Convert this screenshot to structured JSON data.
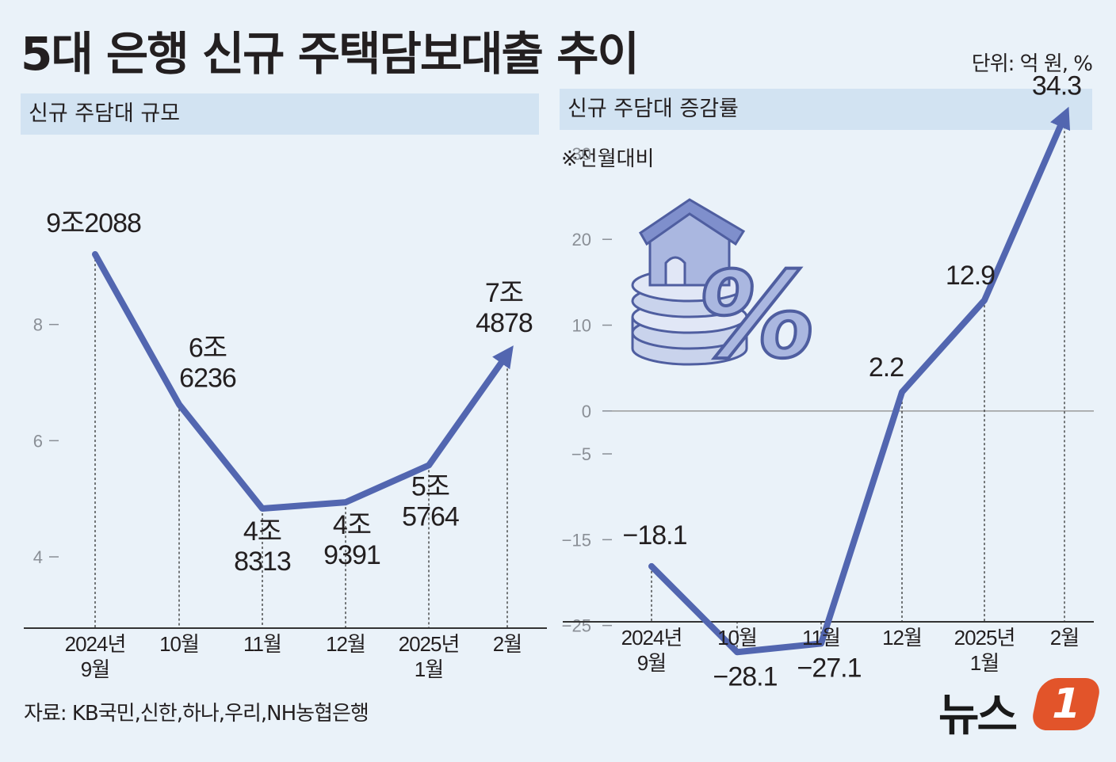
{
  "header": {
    "title": "5대 은행 신규 주택담보대출 추이",
    "unit": "단위: 억 원, %"
  },
  "footer": {
    "source": "자료: KB국민,신한,하나,우리,NH농협은행",
    "logo_text": "뉴스",
    "logo_badge": "1"
  },
  "colors": {
    "line": "#5266b0",
    "panel_header": "#d2e3f2",
    "background": "#eaf2f9",
    "logo": "#e2542a"
  },
  "icons": [
    "house-on-coins-percent-icon"
  ],
  "chart_data": [
    {
      "type": "line",
      "title": "신규 주담대 규모",
      "categories": [
        "2024년 9월",
        "10월",
        "11월",
        "12월",
        "2025년 1월",
        "2월"
      ],
      "category_lines": [
        [
          "2024년",
          "9월"
        ],
        [
          "10월"
        ],
        [
          "11월"
        ],
        [
          "12월"
        ],
        [
          "2025년",
          "1월"
        ],
        [
          "2월"
        ]
      ],
      "values": [
        92088,
        66236,
        48313,
        49391,
        55764,
        74878
      ],
      "value_labels": [
        [
          "9조2088"
        ],
        [
          "6조",
          "6236"
        ],
        [
          "4조",
          "8313"
        ],
        [
          "4조",
          "9391"
        ],
        [
          "5조",
          "5764"
        ],
        [
          "7조",
          "4878"
        ]
      ],
      "yticks": [
        {
          "value": 40000,
          "label": "4"
        },
        {
          "value": 60000,
          "label": "6"
        },
        {
          "value": 80000,
          "label": "8"
        }
      ],
      "ylim": [
        22000,
        100000
      ],
      "xlabel": "",
      "ylabel": "",
      "arrow_end": true
    },
    {
      "type": "line",
      "title": "신규 주담대 증감률",
      "note": "※전월대비",
      "categories": [
        "2024년 9월",
        "10월",
        "11월",
        "12월",
        "2025년 1월",
        "2월"
      ],
      "category_lines": [
        [
          "2024년",
          "9월"
        ],
        [
          "10월"
        ],
        [
          "11월"
        ],
        [
          "12월"
        ],
        [
          "2025년",
          "1월"
        ],
        [
          "2월"
        ]
      ],
      "values": [
        -18.1,
        -28.1,
        -27.1,
        2.2,
        12.9,
        34.3
      ],
      "value_labels": [
        [
          "−18.1"
        ],
        [
          "−28.1"
        ],
        [
          "−27.1"
        ],
        [
          "2.2"
        ],
        [
          "12.9"
        ],
        [
          "34.3"
        ]
      ],
      "yticks": [
        {
          "value": 30,
          "label": "30"
        },
        {
          "value": 20,
          "label": "20"
        },
        {
          "value": 10,
          "label": "10"
        },
        {
          "value": 0,
          "label": "0"
        },
        {
          "value": -5,
          "label": "−5"
        },
        {
          "value": -15,
          "label": "−15"
        },
        {
          "value": -25,
          "label": "−25"
        }
      ],
      "ylim": [
        -35,
        37
      ],
      "xlabel": "",
      "ylabel": "",
      "zero_line": true,
      "arrow_end": true
    }
  ]
}
